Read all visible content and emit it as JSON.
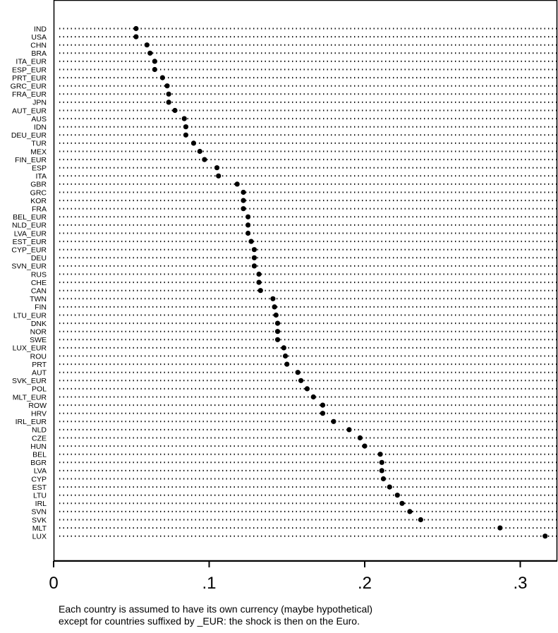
{
  "chart_data": {
    "type": "dot",
    "categories": [
      "IND",
      "USA",
      "CHN",
      "BRA",
      "ITA_EUR",
      "ESP_EUR",
      "PRT_EUR",
      "GRC_EUR",
      "FRA_EUR",
      "JPN",
      "AUT_EUR",
      "AUS",
      "IDN",
      "DEU_EUR",
      "TUR",
      "MEX",
      "FIN_EUR",
      "ESP",
      "ITA",
      "GBR",
      "GRC",
      "KOR",
      "FRA",
      "BEL_EUR",
      "NLD_EUR",
      "LVA_EUR",
      "EST_EUR",
      "CYP_EUR",
      "DEU",
      "SVN_EUR",
      "RUS",
      "CHE",
      "CAN",
      "TWN",
      "FIN",
      "LTU_EUR",
      "DNK",
      "NOR",
      "SWE",
      "LUX_EUR",
      "ROU",
      "PRT",
      "AUT",
      "SVK_EUR",
      "POL",
      "MLT_EUR",
      "ROW",
      "HRV",
      "IRL_EUR",
      "NLD",
      "CZE",
      "HUN",
      "BEL",
      "BGR",
      "LVA",
      "CYP",
      "EST",
      "LTU",
      "IRL",
      "SVN",
      "SVK",
      "MLT",
      "LUX"
    ],
    "values": [
      0.053,
      0.053,
      0.06,
      0.062,
      0.065,
      0.065,
      0.07,
      0.073,
      0.074,
      0.074,
      0.078,
      0.084,
      0.085,
      0.085,
      0.09,
      0.094,
      0.097,
      0.105,
      0.106,
      0.118,
      0.122,
      0.122,
      0.122,
      0.125,
      0.125,
      0.125,
      0.127,
      0.129,
      0.129,
      0.129,
      0.132,
      0.132,
      0.133,
      0.141,
      0.142,
      0.143,
      0.144,
      0.144,
      0.144,
      0.148,
      0.149,
      0.15,
      0.157,
      0.159,
      0.163,
      0.167,
      0.173,
      0.173,
      0.18,
      0.19,
      0.197,
      0.2,
      0.21,
      0.211,
      0.211,
      0.212,
      0.216,
      0.221,
      0.224,
      0.229,
      0.236,
      0.287,
      0.316
    ],
    "xticks": [
      0,
      0.1,
      0.2,
      0.3
    ],
    "xtick_labels": [
      "0",
      ".1",
      ".2",
      ".3"
    ],
    "xlim": [
      0,
      0.32
    ],
    "grid": "dotted row leaders"
  },
  "footnote": {
    "line1": "Each country is assumed to have its own currency (maybe hypothetical)",
    "line2": "except for countries suffixed by _EUR: the shock is then on the Euro."
  }
}
